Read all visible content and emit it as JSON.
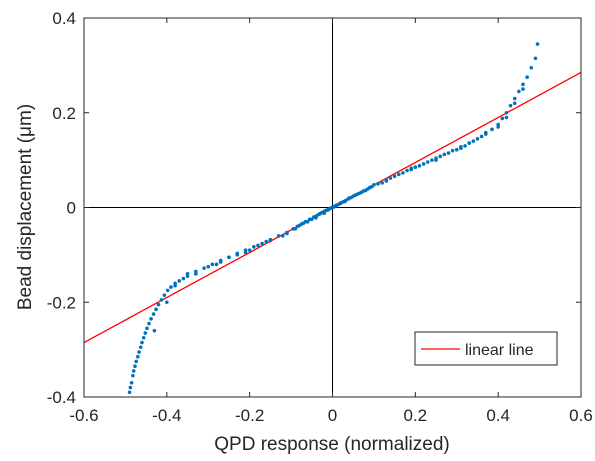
{
  "chart_data": {
    "type": "scatter",
    "title": "",
    "xlabel": "QPD response (normalized)",
    "ylabel": "Bead displacement (μm)",
    "xlim": [
      -0.6,
      0.6
    ],
    "ylim": [
      -0.4,
      0.4
    ],
    "x_ticks": [
      -0.6,
      -0.4,
      -0.2,
      0,
      0.2,
      0.4,
      0.6
    ],
    "y_ticks": [
      -0.4,
      -0.2,
      0,
      0.2,
      0.4
    ],
    "x_tick_labels": [
      "-0.6",
      "-0.4",
      "-0.2",
      "0",
      "0.2",
      "0.4",
      "0.6"
    ],
    "y_tick_labels": [
      "-0.4",
      "-0.2",
      "0",
      "0.2",
      "0.4"
    ],
    "grid": false,
    "zero_lines": true,
    "legend": {
      "position": "bottom-right",
      "entries": [
        "linear line"
      ]
    },
    "series": [
      {
        "kind": "points",
        "color": "#0072BD",
        "x": [
          -0.49,
          -0.488,
          -0.485,
          -0.482,
          -0.48,
          -0.477,
          -0.474,
          -0.47,
          -0.467,
          -0.463,
          -0.46,
          -0.456,
          -0.452,
          -0.448,
          -0.443,
          -0.438,
          -0.432,
          -0.426,
          -0.42,
          -0.413,
          -0.406,
          -0.398,
          -0.39,
          -0.38,
          -0.37,
          -0.36,
          -0.35,
          -0.33,
          -0.31,
          -0.29,
          -0.27,
          -0.25,
          -0.23,
          -0.21,
          -0.19,
          -0.17,
          -0.15,
          -0.13,
          -0.11,
          -0.095,
          -0.085,
          -0.075,
          -0.065,
          -0.055,
          -0.045,
          -0.038,
          -0.032,
          -0.026,
          -0.02,
          -0.015,
          -0.01,
          -0.006,
          -0.003,
          0,
          0.003,
          0.006,
          0.01,
          0.015,
          0.02,
          0.026,
          0.032,
          0.038,
          0.045,
          0.055,
          0.065,
          0.075,
          0.085,
          0.095,
          0.11,
          0.13,
          0.15,
          0.17,
          0.19,
          0.21,
          0.23,
          0.25,
          0.27,
          0.29,
          0.31,
          0.33,
          0.35,
          0.37,
          0.385,
          0.4,
          0.41,
          0.42,
          0.43,
          0.44,
          0.45,
          0.46,
          0.47,
          0.48,
          0.49,
          0.495,
          -0.15,
          -0.12,
          -0.09,
          -0.06,
          -0.04,
          -0.02,
          0.02,
          0.04,
          0.06,
          0.08,
          0.12,
          0.16,
          0.2,
          0.24,
          0.28,
          0.32,
          0.36,
          0.4,
          -0.2,
          -0.25,
          -0.3,
          -0.35,
          -0.38,
          -0.33,
          -0.28,
          -0.23,
          -0.18,
          -0.11,
          -0.07,
          -0.05,
          -0.01,
          0.01,
          0.05,
          0.07,
          0.1,
          0.14,
          0.18,
          0.22,
          0.26,
          0.3,
          0.34,
          0.44,
          0.46,
          -0.43,
          -0.4,
          -0.27,
          -0.21,
          -0.16,
          -0.08,
          -0.03,
          0.03,
          0.09,
          0.13,
          0.19,
          0.25,
          0.31,
          0.37,
          0.42
        ],
        "y": [
          -0.39,
          -0.38,
          -0.37,
          -0.355,
          -0.345,
          -0.335,
          -0.325,
          -0.315,
          -0.305,
          -0.295,
          -0.285,
          -0.275,
          -0.265,
          -0.255,
          -0.245,
          -0.235,
          -0.225,
          -0.215,
          -0.205,
          -0.195,
          -0.185,
          -0.175,
          -0.168,
          -0.16,
          -0.155,
          -0.15,
          -0.145,
          -0.135,
          -0.128,
          -0.12,
          -0.112,
          -0.105,
          -0.097,
          -0.09,
          -0.083,
          -0.076,
          -0.068,
          -0.06,
          -0.053,
          -0.045,
          -0.04,
          -0.035,
          -0.03,
          -0.025,
          -0.02,
          -0.017,
          -0.014,
          -0.011,
          -0.008,
          -0.006,
          -0.004,
          -0.002,
          -0.001,
          0,
          0.001,
          0.003,
          0.005,
          0.007,
          0.009,
          0.012,
          0.015,
          0.018,
          0.021,
          0.026,
          0.03,
          0.035,
          0.039,
          0.044,
          0.05,
          0.058,
          0.066,
          0.073,
          0.08,
          0.088,
          0.096,
          0.104,
          0.112,
          0.12,
          0.128,
          0.136,
          0.145,
          0.155,
          0.165,
          0.175,
          0.188,
          0.2,
          0.215,
          0.23,
          0.245,
          0.26,
          0.275,
          0.295,
          0.315,
          0.345,
          -0.07,
          -0.06,
          -0.045,
          -0.03,
          -0.022,
          -0.012,
          0.01,
          0.02,
          0.028,
          0.036,
          0.052,
          0.07,
          0.085,
          0.1,
          0.115,
          0.13,
          0.15,
          0.17,
          -0.09,
          -0.105,
          -0.125,
          -0.14,
          -0.165,
          -0.14,
          -0.12,
          -0.1,
          -0.08,
          -0.055,
          -0.033,
          -0.025,
          -0.005,
          0.004,
          0.024,
          0.032,
          0.048,
          0.062,
          0.078,
          0.092,
          0.108,
          0.122,
          0.14,
          0.22,
          0.25,
          -0.26,
          -0.2,
          -0.115,
          -0.095,
          -0.072,
          -0.038,
          -0.013,
          0.013,
          0.042,
          0.056,
          0.083,
          0.1,
          0.125,
          0.158,
          0.19
        ]
      },
      {
        "kind": "line",
        "name": "linear line",
        "color": "#ff0000",
        "x": [
          -0.6,
          0.6
        ],
        "y": [
          -0.285,
          0.285
        ]
      }
    ]
  }
}
